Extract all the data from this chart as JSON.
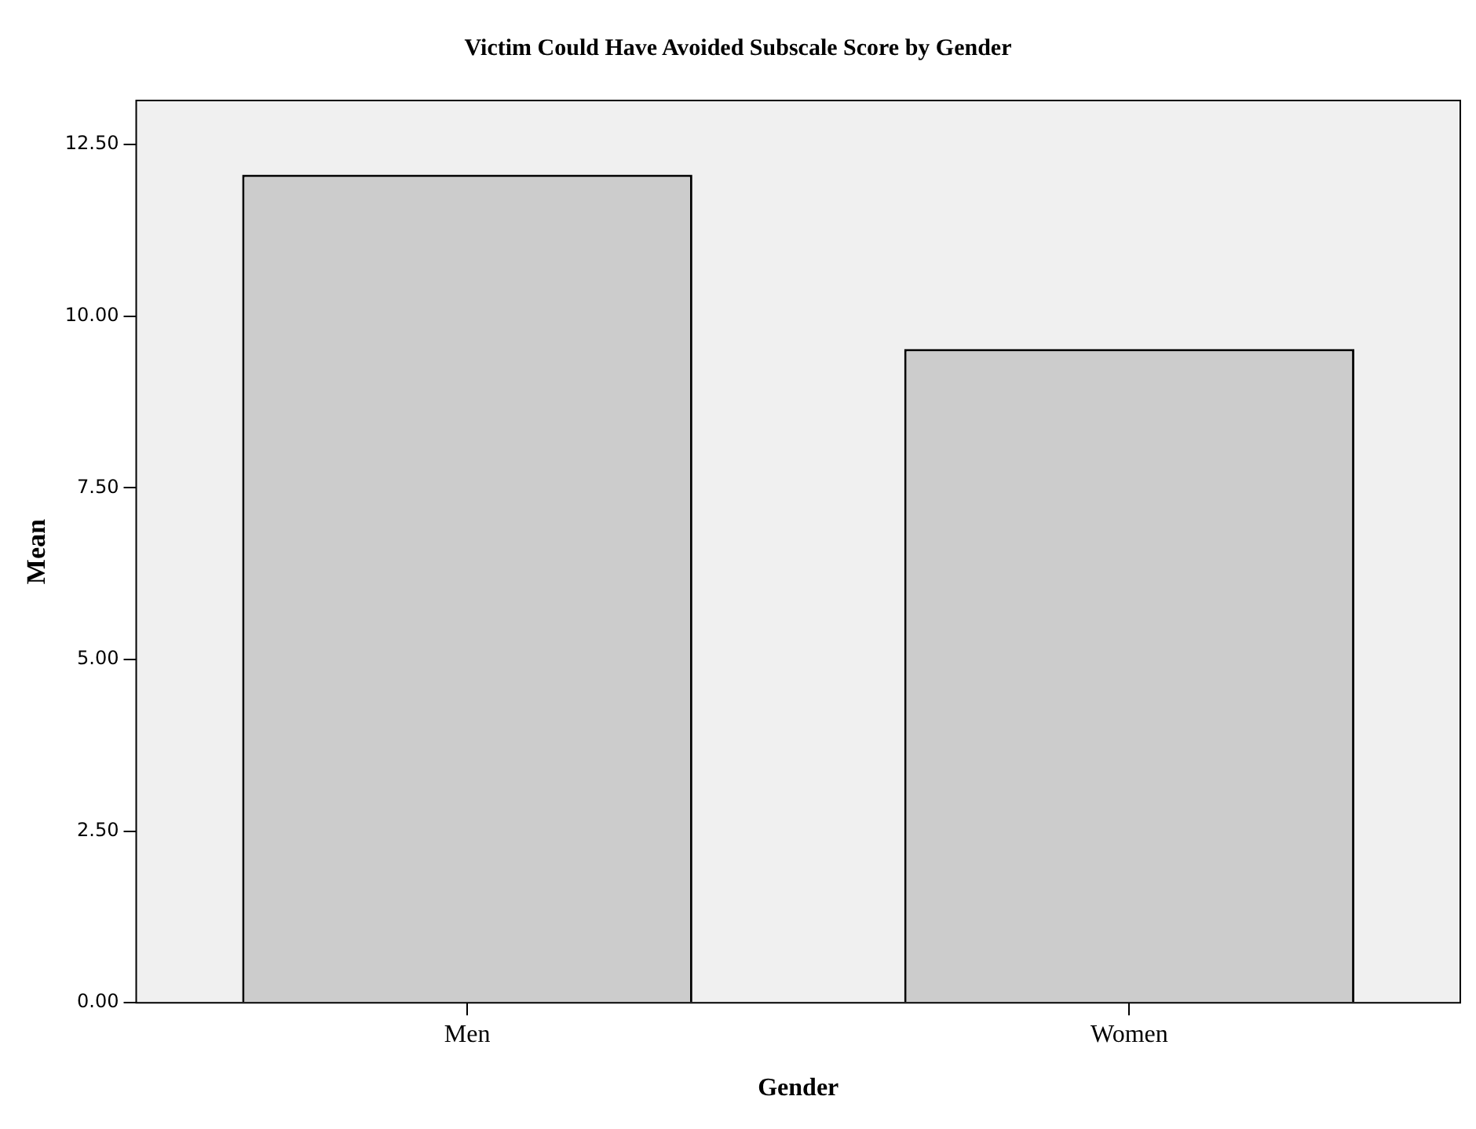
{
  "chart_data": {
    "type": "bar",
    "title": "Victim Could Have Avoided Subscale Score by Gender",
    "xlabel": "Gender",
    "ylabel": "Mean",
    "categories": [
      "Men",
      "Women"
    ],
    "values": [
      12.06,
      9.52
    ],
    "color": "#cccccc",
    "ylim": [
      0,
      13.14
    ],
    "yticks": [
      {
        "value": 0,
        "label": "0.00"
      },
      {
        "value": 2.5,
        "label": "2.50"
      },
      {
        "value": 5,
        "label": "5.00"
      },
      {
        "value": 7.5,
        "label": "7.50"
      },
      {
        "value": 10,
        "label": "10.00"
      },
      {
        "value": 12.5,
        "label": "12.50"
      }
    ]
  }
}
